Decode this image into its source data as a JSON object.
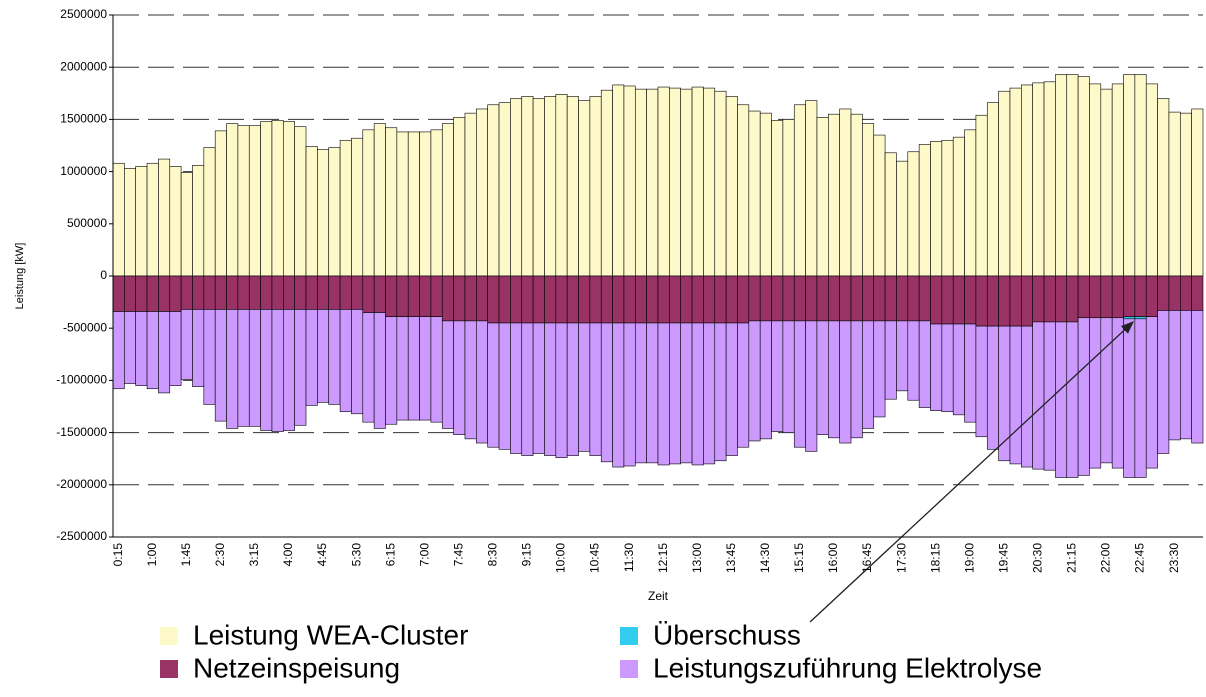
{
  "chart_data": {
    "type": "bar",
    "stacked": true,
    "y_label": "Leistung  [kW]",
    "x_label": "Zeit",
    "categories": [
      "0:15",
      null,
      null,
      "1:00",
      null,
      null,
      "1:45",
      null,
      null,
      "2:30",
      null,
      null,
      "3:15",
      null,
      null,
      "4:00",
      null,
      null,
      "4:45",
      null,
      null,
      "5:30",
      null,
      null,
      "6:15",
      null,
      null,
      "7:00",
      null,
      null,
      "7:45",
      null,
      null,
      "8:30",
      null,
      null,
      "9:15",
      null,
      null,
      "10:00",
      null,
      null,
      "10:45",
      null,
      null,
      "11:30",
      null,
      null,
      "12:15",
      null,
      null,
      "13:00",
      null,
      null,
      "13:45",
      null,
      null,
      "14:30",
      null,
      null,
      "15:15",
      null,
      null,
      "16:00",
      null,
      null,
      "16:45",
      null,
      null,
      "17:30",
      null,
      null,
      "18:15",
      null,
      null,
      "19:00",
      null,
      null,
      "19:45",
      null,
      null,
      "20:30",
      null,
      null,
      "21:15",
      null,
      null,
      "22:00",
      null,
      null,
      "22:45",
      null,
      null,
      "23:30",
      null,
      null
    ],
    "series": [
      {
        "name": "Leistung WEA-Cluster",
        "color": "#fdf9c9",
        "values": [
          1080000,
          1030000,
          1050000,
          1080000,
          1120000,
          1050000,
          990000,
          1060000,
          1230000,
          1390000,
          1460000,
          1440000,
          1440000,
          1480000,
          1490000,
          1480000,
          1430000,
          1240000,
          1210000,
          1230000,
          1300000,
          1320000,
          1400000,
          1460000,
          1420000,
          1380000,
          1380000,
          1380000,
          1400000,
          1460000,
          1520000,
          1560000,
          1600000,
          1640000,
          1660000,
          1700000,
          1720000,
          1700000,
          1720000,
          1740000,
          1720000,
          1680000,
          1720000,
          1780000,
          1830000,
          1820000,
          1790000,
          1790000,
          1810000,
          1800000,
          1790000,
          1810000,
          1800000,
          1770000,
          1720000,
          1640000,
          1580000,
          1560000,
          1490000,
          1500000,
          1640000,
          1680000,
          1520000,
          1550000,
          1600000,
          1550000,
          1460000,
          1350000,
          1180000,
          1100000,
          1190000,
          1260000,
          1290000,
          1300000,
          1330000,
          1400000,
          1540000,
          1660000,
          1770000,
          1800000,
          1830000,
          1850000,
          1860000,
          1930000,
          1930000,
          1910000,
          1840000,
          1790000,
          1840000,
          1930000,
          1930000,
          1840000,
          1700000,
          1570000,
          1560000,
          1600000
        ]
      },
      {
        "name": "Netzeinspeisung",
        "color": "#993366",
        "values": [
          -340000,
          -340000,
          -340000,
          -340000,
          -340000,
          -340000,
          -320000,
          -320000,
          -320000,
          -320000,
          -320000,
          -320000,
          -320000,
          -320000,
          -320000,
          -320000,
          -320000,
          -320000,
          -320000,
          -320000,
          -320000,
          -320000,
          -350000,
          -350000,
          -390000,
          -390000,
          -390000,
          -390000,
          -390000,
          -430000,
          -430000,
          -430000,
          -430000,
          -450000,
          -450000,
          -450000,
          -450000,
          -450000,
          -450000,
          -450000,
          -450000,
          -450000,
          -450000,
          -450000,
          -450000,
          -450000,
          -450000,
          -450000,
          -450000,
          -450000,
          -450000,
          -450000,
          -450000,
          -450000,
          -450000,
          -450000,
          -430000,
          -430000,
          -430000,
          -430000,
          -430000,
          -430000,
          -430000,
          -430000,
          -430000,
          -430000,
          -430000,
          -430000,
          -430000,
          -430000,
          -430000,
          -430000,
          -460000,
          -460000,
          -460000,
          -460000,
          -480000,
          -480000,
          -480000,
          -480000,
          -480000,
          -440000,
          -440000,
          -440000,
          -440000,
          -400000,
          -400000,
          -400000,
          -400000,
          -390000,
          -390000,
          -390000,
          -330000,
          -330000,
          -330000,
          -330000
        ]
      },
      {
        "name": "Überschuss",
        "color": "#33ccee",
        "values": [
          0,
          0,
          0,
          0,
          0,
          0,
          0,
          0,
          0,
          0,
          0,
          0,
          0,
          0,
          0,
          0,
          0,
          0,
          0,
          0,
          0,
          0,
          0,
          0,
          0,
          0,
          0,
          0,
          0,
          0,
          0,
          0,
          0,
          0,
          0,
          0,
          0,
          0,
          0,
          0,
          0,
          0,
          0,
          0,
          0,
          0,
          0,
          0,
          0,
          0,
          0,
          0,
          0,
          0,
          0,
          0,
          0,
          0,
          0,
          0,
          0,
          0,
          0,
          0,
          0,
          0,
          0,
          0,
          0,
          0,
          0,
          0,
          0,
          0,
          0,
          0,
          0,
          0,
          0,
          0,
          0,
          0,
          0,
          0,
          0,
          0,
          0,
          0,
          0,
          -20000,
          -20000,
          0,
          0,
          0,
          0,
          0
        ]
      },
      {
        "name": "Leistungszuführung Elektrolyse",
        "color": "#cc99ff",
        "values": [
          -740000,
          -690000,
          -710000,
          -740000,
          -780000,
          -710000,
          -670000,
          -740000,
          -910000,
          -1070000,
          -1140000,
          -1120000,
          -1120000,
          -1160000,
          -1170000,
          -1160000,
          -1110000,
          -920000,
          -890000,
          -910000,
          -980000,
          -1000000,
          -1050000,
          -1110000,
          -1030000,
          -990000,
          -990000,
          -990000,
          -1010000,
          -1030000,
          -1090000,
          -1130000,
          -1170000,
          -1190000,
          -1210000,
          -1250000,
          -1270000,
          -1250000,
          -1270000,
          -1290000,
          -1270000,
          -1230000,
          -1270000,
          -1330000,
          -1380000,
          -1370000,
          -1340000,
          -1340000,
          -1360000,
          -1350000,
          -1340000,
          -1360000,
          -1350000,
          -1320000,
          -1270000,
          -1190000,
          -1150000,
          -1130000,
          -1060000,
          -1070000,
          -1210000,
          -1250000,
          -1090000,
          -1120000,
          -1170000,
          -1120000,
          -1030000,
          -920000,
          -750000,
          -670000,
          -760000,
          -830000,
          -830000,
          -840000,
          -870000,
          -940000,
          -1060000,
          -1180000,
          -1290000,
          -1320000,
          -1350000,
          -1410000,
          -1420000,
          -1490000,
          -1490000,
          -1510000,
          -1440000,
          -1390000,
          -1440000,
          -1520000,
          -1520000,
          -1450000,
          -1370000,
          -1240000,
          -1230000,
          -1270000
        ]
      }
    ],
    "ylim": [
      -2500000,
      2500000
    ],
    "yticks": [
      -2500000,
      -2000000,
      -1500000,
      -1000000,
      -500000,
      0,
      500000,
      1000000,
      1500000,
      2000000,
      2500000
    ],
    "grid": true
  }
}
